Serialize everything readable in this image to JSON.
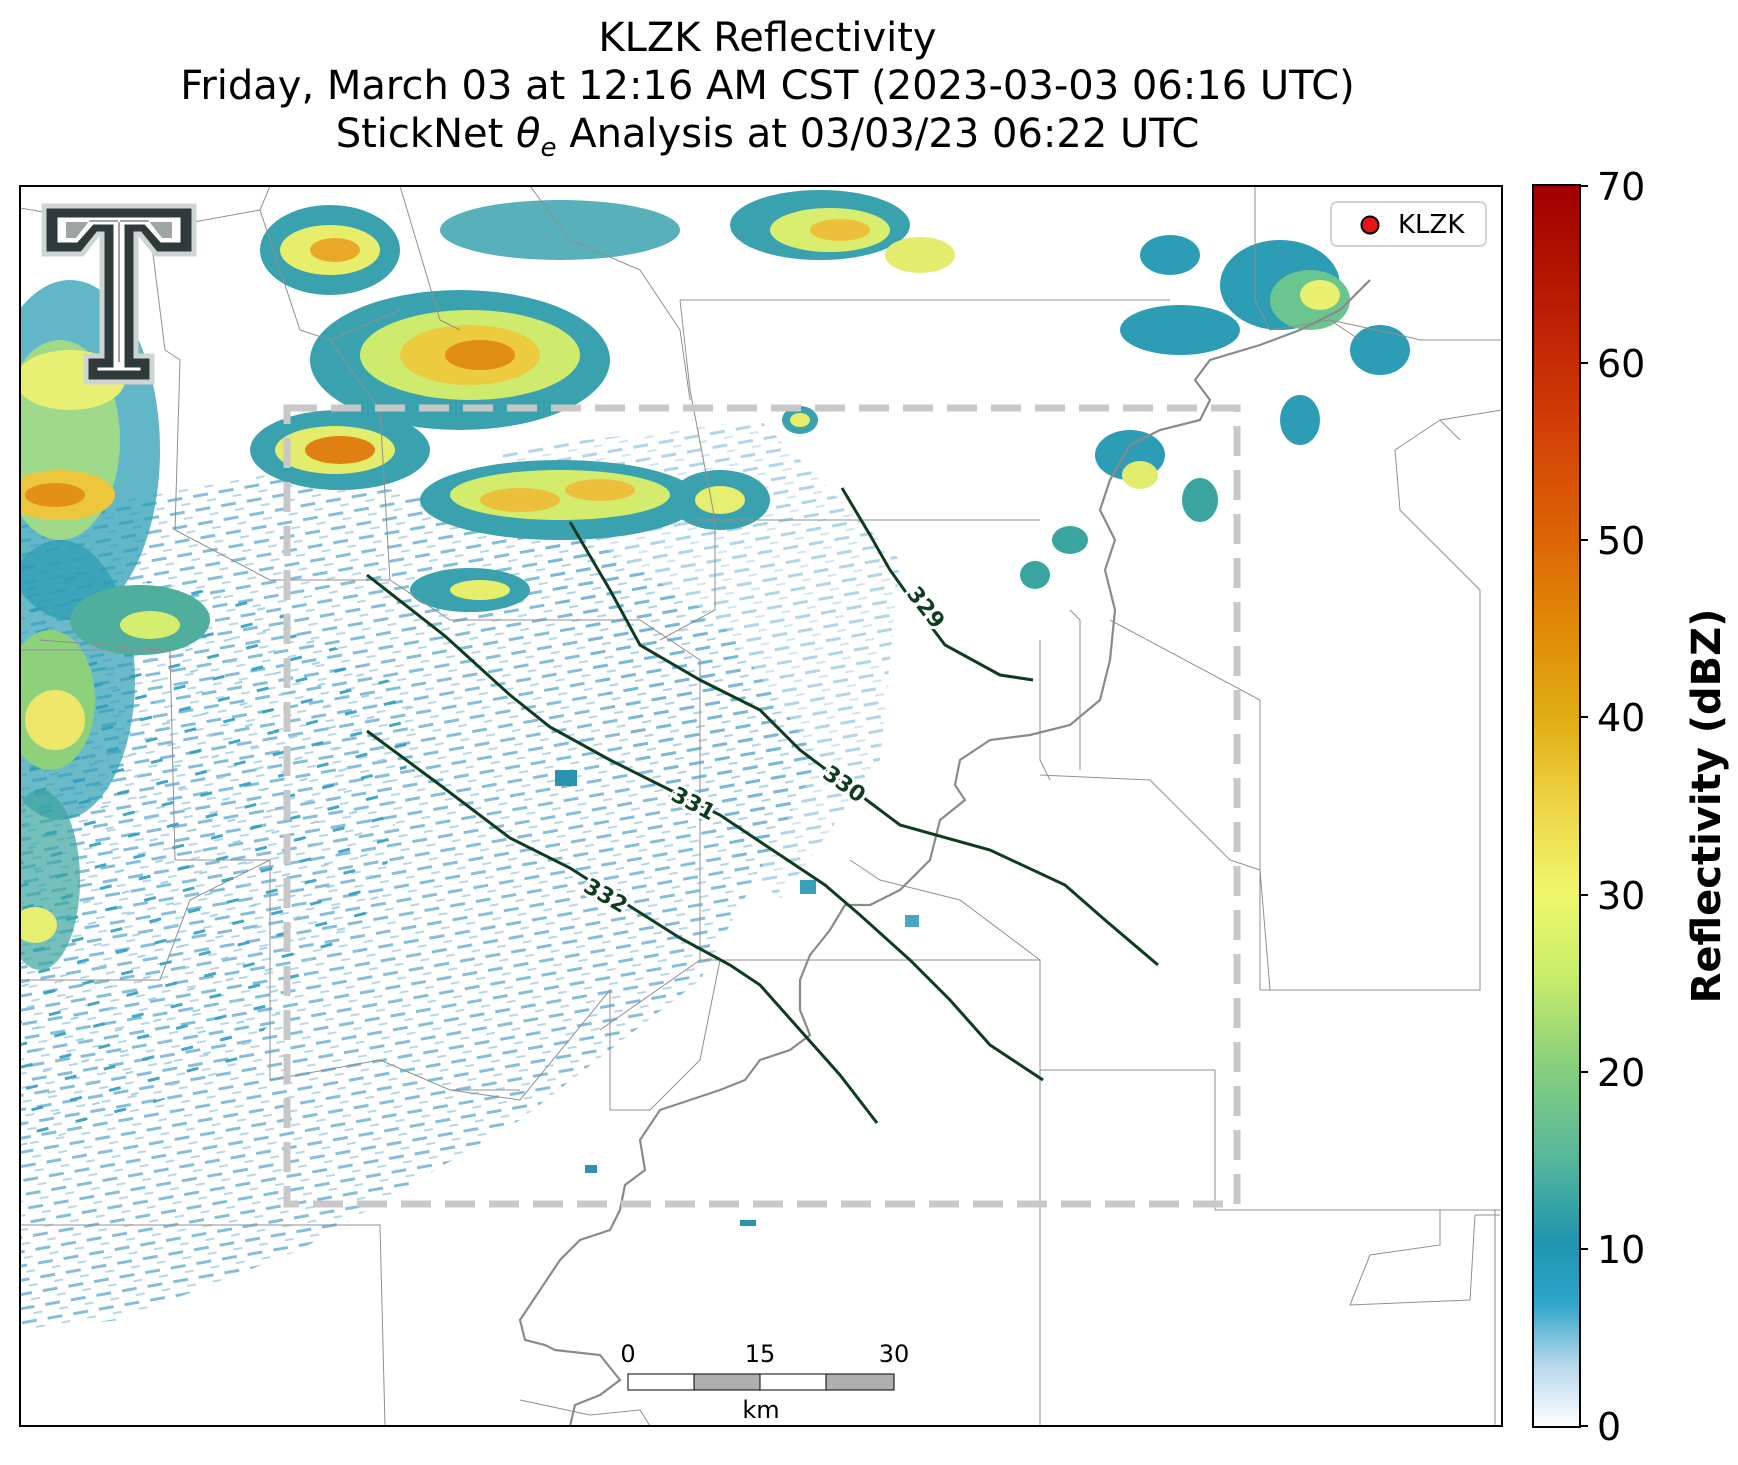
{
  "title": {
    "line1": "KLZK Reflectivity",
    "line2": "Friday, March 03 at 12:16 AM CST (2023-03-03 06:16 UTC)",
    "line3_prefix": "StickNet ",
    "line3_symbol": "θ",
    "line3_subscript": "e",
    "line3_suffix": " Analysis at 03/03/23 06:22 UTC"
  },
  "legend": {
    "station_label": "KLZK",
    "marker_color": "#e8141b"
  },
  "colorbar": {
    "label": "Reflectivity (dBZ)",
    "min": 0,
    "max": 70,
    "ticks": [
      "0",
      "10",
      "20",
      "30",
      "40",
      "50",
      "60",
      "70"
    ]
  },
  "contours": [
    {
      "label": "329"
    },
    {
      "label": "330"
    },
    {
      "label": "331"
    },
    {
      "label": "332"
    }
  ],
  "scalebar": {
    "ticks": [
      "0",
      "15",
      "30"
    ],
    "unit": "km"
  },
  "colors": {
    "contour": "#0d3d1e",
    "river": "#8a8a8a",
    "boundary": "#8f8f8f",
    "domain_box": "#c8c8c8"
  }
}
